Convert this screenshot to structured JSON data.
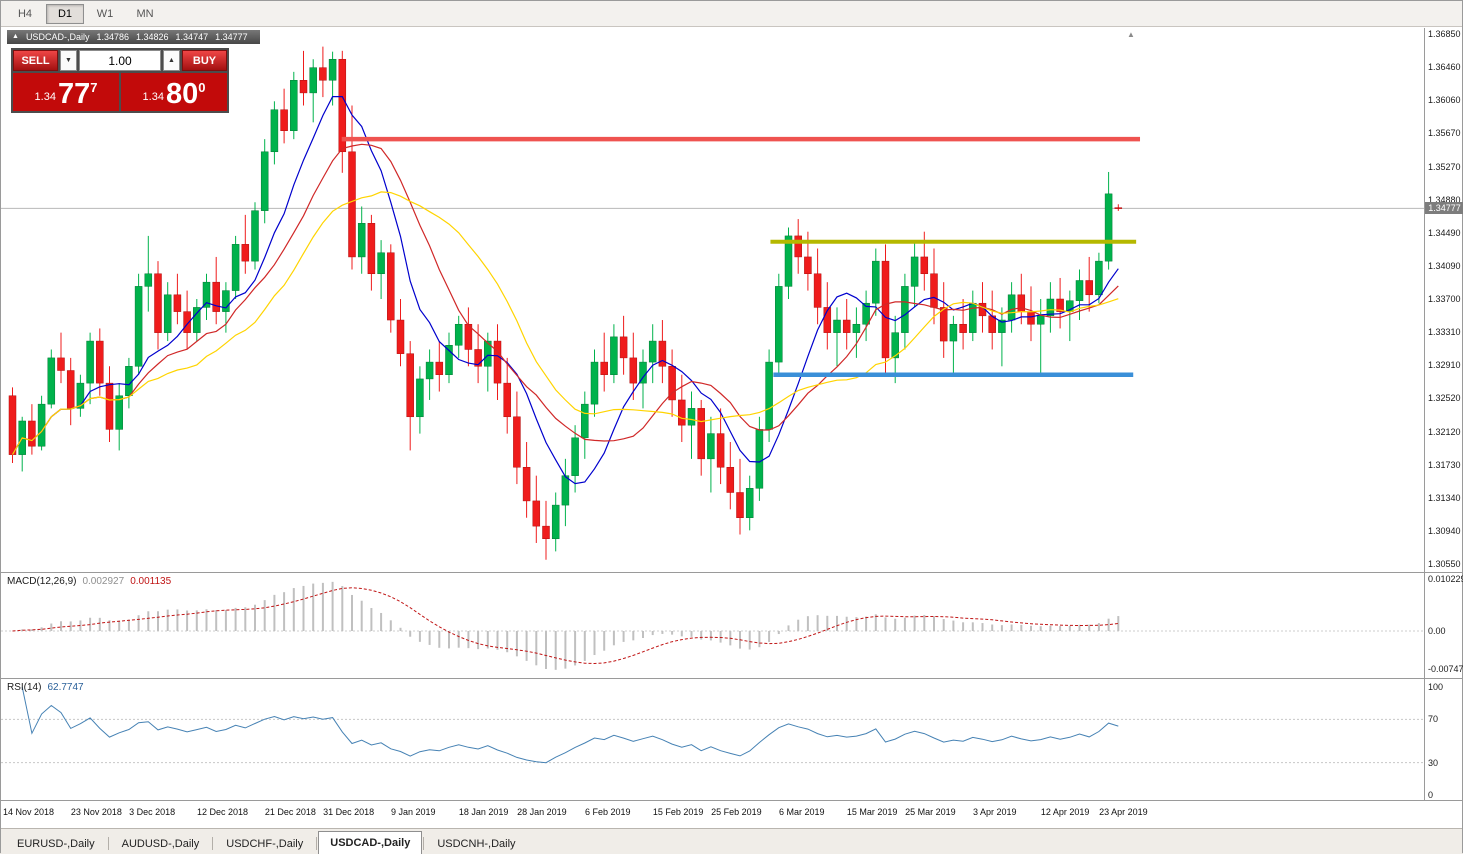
{
  "icons": {
    "chart_arrow": "▲",
    "spin_up": "▲",
    "spin_down": "▼",
    "shift_marker": "▲"
  },
  "timeframe_tabs": {
    "tabs": [
      "H4",
      "D1",
      "W1",
      "MN"
    ],
    "active": "D1"
  },
  "chart_header": {
    "symbol": "USDCAD-,Daily",
    "open": "1.34786",
    "high": "1.34826",
    "low": "1.34747",
    "close": "1.34777"
  },
  "trade_panel": {
    "sell_label": "SELL",
    "buy_label": "BUY",
    "volume_value": "1.00",
    "sell_price_prefix": "1.34",
    "sell_price_big": "77",
    "sell_price_sup": "7",
    "buy_price_prefix": "1.34",
    "buy_price_big": "80",
    "buy_price_sup": "0"
  },
  "bottom_tabs": {
    "tabs": [
      "EURUSD-,Daily",
      "AUDUSD-,Daily",
      "USDCHF-,Daily",
      "USDCAD-,Daily",
      "USDCNH-,Daily"
    ],
    "active": "USDCAD-,Daily"
  },
  "chart_data": {
    "type": "candlestick",
    "symbol": "USDCAD",
    "timeframe": "Daily",
    "current_price": "1.34777",
    "candle_colors": {
      "up": "#00b24c",
      "up_stroke": "#007a33",
      "down": "#ef1c1c",
      "down_stroke": "#b00e0e"
    },
    "y_tick_labels": [
      "1.36850",
      "1.36460",
      "1.36060",
      "1.35670",
      "1.35270",
      "1.34880",
      "1.34490",
      "1.34090",
      "1.33700",
      "1.33310",
      "1.32910",
      "1.32520",
      "1.32120",
      "1.31730",
      "1.31340",
      "1.30940",
      "1.30550"
    ],
    "x_tick_indices": [
      0,
      7,
      13,
      20,
      27,
      33,
      40,
      47,
      53,
      60,
      67,
      73,
      80,
      87,
      93,
      100,
      107,
      113
    ],
    "x_tick_labels": [
      "14 Nov 2018",
      "23 Nov 2018",
      "3 Dec 2018",
      "12 Dec 2018",
      "21 Dec 2018",
      "31 Dec 2018",
      "9 Jan 2019",
      "18 Jan 2019",
      "28 Jan 2019",
      "6 Feb 2019",
      "15 Feb 2019",
      "25 Feb 2019",
      "6 Mar 2019",
      "15 Mar 2019",
      "25 Mar 2019",
      "3 Apr 2019",
      "12 Apr 2019",
      "23 Apr 2019"
    ],
    "moving_averages": [
      {
        "period": 8,
        "color": "#0000cd"
      },
      {
        "period": 13,
        "color": "#d02828"
      },
      {
        "period": 20,
        "color": "#ffd400"
      }
    ],
    "hlines": [
      {
        "name": "resistance-line-red",
        "price": 1.356,
        "color": "#ef5350",
        "width": 4.5,
        "from": 34.3,
        "to": 116.6
      },
      {
        "name": "resistance-line-olive",
        "price": 1.3438,
        "color": "#b5b800",
        "width": 4,
        "from": 78.5,
        "to": 116.2
      },
      {
        "name": "support-line-blue",
        "price": 1.328,
        "color": "#3a8fd8",
        "width": 4.5,
        "from": 78.8,
        "to": 115.9
      }
    ],
    "indicators": {
      "macd": {
        "label": "MACD(12,26,9)",
        "value": "0.002927",
        "signal_value": "0.001135",
        "params": [
          12,
          26,
          9
        ],
        "scale_labels": [
          "0.010229",
          "0.00",
          "-0.00747"
        ],
        "histogram_color": "#c0c0c0",
        "signal_color": "#c01515"
      },
      "rsi": {
        "label": "RSI(14)",
        "value": "62.7747",
        "period": 14,
        "levels": [
          70,
          30
        ],
        "scale_labels": [
          "100",
          "70",
          "30",
          "0"
        ],
        "line_color": "#4682b4"
      }
    },
    "ohlc": [
      [
        1.3255,
        1.3265,
        1.3175,
        1.3185
      ],
      [
        1.3185,
        1.323,
        1.3165,
        1.3225
      ],
      [
        1.3225,
        1.3245,
        1.3185,
        1.3195
      ],
      [
        1.3195,
        1.3255,
        1.319,
        1.3245
      ],
      [
        1.3245,
        1.331,
        1.324,
        1.33
      ],
      [
        1.33,
        1.333,
        1.327,
        1.3285
      ],
      [
        1.3285,
        1.33,
        1.322,
        1.324
      ],
      [
        1.324,
        1.328,
        1.323,
        1.327
      ],
      [
        1.327,
        1.333,
        1.3245,
        1.332
      ],
      [
        1.332,
        1.3335,
        1.3255,
        1.327
      ],
      [
        1.327,
        1.329,
        1.32,
        1.3215
      ],
      [
        1.3215,
        1.327,
        1.319,
        1.3255
      ],
      [
        1.3255,
        1.33,
        1.324,
        1.329
      ],
      [
        1.329,
        1.34,
        1.328,
        1.3385
      ],
      [
        1.3385,
        1.3445,
        1.3355,
        1.34
      ],
      [
        1.34,
        1.3415,
        1.331,
        1.333
      ],
      [
        1.333,
        1.339,
        1.332,
        1.3375
      ],
      [
        1.3375,
        1.34,
        1.334,
        1.3355
      ],
      [
        1.3355,
        1.338,
        1.331,
        1.333
      ],
      [
        1.333,
        1.337,
        1.332,
        1.336
      ],
      [
        1.336,
        1.34,
        1.3345,
        1.339
      ],
      [
        1.339,
        1.342,
        1.334,
        1.3355
      ],
      [
        1.3355,
        1.339,
        1.333,
        1.338
      ],
      [
        1.338,
        1.3445,
        1.337,
        1.3435
      ],
      [
        1.3435,
        1.347,
        1.34,
        1.3415
      ],
      [
        1.3415,
        1.3485,
        1.3405,
        1.3475
      ],
      [
        1.3475,
        1.356,
        1.346,
        1.3545
      ],
      [
        1.3545,
        1.3605,
        1.353,
        1.3595
      ],
      [
        1.3595,
        1.362,
        1.3555,
        1.357
      ],
      [
        1.357,
        1.364,
        1.356,
        1.363
      ],
      [
        1.363,
        1.3665,
        1.36,
        1.3615
      ],
      [
        1.3615,
        1.3655,
        1.358,
        1.3645
      ],
      [
        1.3645,
        1.367,
        1.361,
        1.363
      ],
      [
        1.363,
        1.3664,
        1.36,
        1.3655
      ],
      [
        1.3655,
        1.3665,
        1.352,
        1.3545
      ],
      [
        1.3545,
        1.36,
        1.3405,
        1.342
      ],
      [
        1.342,
        1.348,
        1.34,
        1.346
      ],
      [
        1.346,
        1.347,
        1.338,
        1.34
      ],
      [
        1.34,
        1.344,
        1.337,
        1.3425
      ],
      [
        1.3425,
        1.3435,
        1.333,
        1.3345
      ],
      [
        1.3345,
        1.337,
        1.329,
        1.3305
      ],
      [
        1.3305,
        1.332,
        1.319,
        1.323
      ],
      [
        1.323,
        1.329,
        1.321,
        1.3275
      ],
      [
        1.3275,
        1.331,
        1.325,
        1.3295
      ],
      [
        1.3295,
        1.332,
        1.326,
        1.328
      ],
      [
        1.328,
        1.333,
        1.327,
        1.3315
      ],
      [
        1.3315,
        1.335,
        1.33,
        1.334
      ],
      [
        1.334,
        1.336,
        1.329,
        1.331
      ],
      [
        1.331,
        1.334,
        1.327,
        1.329
      ],
      [
        1.329,
        1.333,
        1.326,
        1.332
      ],
      [
        1.332,
        1.334,
        1.325,
        1.327
      ],
      [
        1.327,
        1.33,
        1.321,
        1.323
      ],
      [
        1.323,
        1.326,
        1.315,
        1.317
      ],
      [
        1.317,
        1.32,
        1.311,
        1.313
      ],
      [
        1.313,
        1.316,
        1.308,
        1.31
      ],
      [
        1.31,
        1.313,
        1.306,
        1.3085
      ],
      [
        1.3085,
        1.314,
        1.307,
        1.3125
      ],
      [
        1.3125,
        1.318,
        1.31,
        1.316
      ],
      [
        1.316,
        1.322,
        1.314,
        1.3205
      ],
      [
        1.3205,
        1.326,
        1.318,
        1.3245
      ],
      [
        1.3245,
        1.331,
        1.323,
        1.3295
      ],
      [
        1.3295,
        1.333,
        1.326,
        1.328
      ],
      [
        1.328,
        1.334,
        1.327,
        1.3325
      ],
      [
        1.3325,
        1.335,
        1.328,
        1.33
      ],
      [
        1.33,
        1.333,
        1.325,
        1.327
      ],
      [
        1.327,
        1.331,
        1.324,
        1.3295
      ],
      [
        1.3295,
        1.334,
        1.327,
        1.332
      ],
      [
        1.332,
        1.3345,
        1.327,
        1.329
      ],
      [
        1.329,
        1.331,
        1.323,
        1.325
      ],
      [
        1.325,
        1.328,
        1.32,
        1.322
      ],
      [
        1.322,
        1.326,
        1.318,
        1.324
      ],
      [
        1.324,
        1.325,
        1.316,
        1.318
      ],
      [
        1.318,
        1.323,
        1.314,
        1.321
      ],
      [
        1.321,
        1.324,
        1.315,
        1.317
      ],
      [
        1.317,
        1.32,
        1.312,
        1.314
      ],
      [
        1.314,
        1.318,
        1.309,
        1.311
      ],
      [
        1.311,
        1.316,
        1.3095,
        1.3145
      ],
      [
        1.3145,
        1.323,
        1.313,
        1.3215
      ],
      [
        1.3215,
        1.331,
        1.32,
        1.3295
      ],
      [
        1.3295,
        1.34,
        1.328,
        1.3385
      ],
      [
        1.3385,
        1.3455,
        1.337,
        1.3445
      ],
      [
        1.3445,
        1.3465,
        1.34,
        1.342
      ],
      [
        1.342,
        1.345,
        1.338,
        1.34
      ],
      [
        1.34,
        1.343,
        1.334,
        1.336
      ],
      [
        1.336,
        1.339,
        1.331,
        1.333
      ],
      [
        1.333,
        1.336,
        1.329,
        1.3345
      ],
      [
        1.3345,
        1.337,
        1.331,
        1.333
      ],
      [
        1.333,
        1.336,
        1.33,
        1.334
      ],
      [
        1.334,
        1.338,
        1.332,
        1.3365
      ],
      [
        1.3365,
        1.343,
        1.335,
        1.3415
      ],
      [
        1.3415,
        1.3435,
        1.328,
        1.33
      ],
      [
        1.33,
        1.335,
        1.327,
        1.333
      ],
      [
        1.333,
        1.34,
        1.331,
        1.3385
      ],
      [
        1.3385,
        1.344,
        1.336,
        1.342
      ],
      [
        1.342,
        1.345,
        1.338,
        1.34
      ],
      [
        1.34,
        1.343,
        1.334,
        1.336
      ],
      [
        1.336,
        1.339,
        1.33,
        1.332
      ],
      [
        1.332,
        1.335,
        1.328,
        1.334
      ],
      [
        1.334,
        1.337,
        1.331,
        1.333
      ],
      [
        1.333,
        1.338,
        1.332,
        1.3365
      ],
      [
        1.3365,
        1.339,
        1.333,
        1.335
      ],
      [
        1.335,
        1.338,
        1.331,
        1.333
      ],
      [
        1.333,
        1.336,
        1.329,
        1.3345
      ],
      [
        1.3345,
        1.339,
        1.333,
        1.3375
      ],
      [
        1.3375,
        1.34,
        1.334,
        1.3355
      ],
      [
        1.3355,
        1.3385,
        1.332,
        1.334
      ],
      [
        1.334,
        1.337,
        1.328,
        1.335
      ],
      [
        1.335,
        1.339,
        1.333,
        1.337
      ],
      [
        1.337,
        1.3395,
        1.3335,
        1.3355
      ],
      [
        1.3355,
        1.338,
        1.332,
        1.3368
      ],
      [
        1.3368,
        1.3405,
        1.3345,
        1.3392
      ],
      [
        1.3392,
        1.342,
        1.3355,
        1.3375
      ],
      [
        1.3375,
        1.3425,
        1.3365,
        1.3415
      ],
      [
        1.3415,
        1.3521,
        1.3405,
        1.3495
      ],
      [
        1.34786,
        1.34826,
        1.34747,
        1.34777
      ]
    ]
  }
}
